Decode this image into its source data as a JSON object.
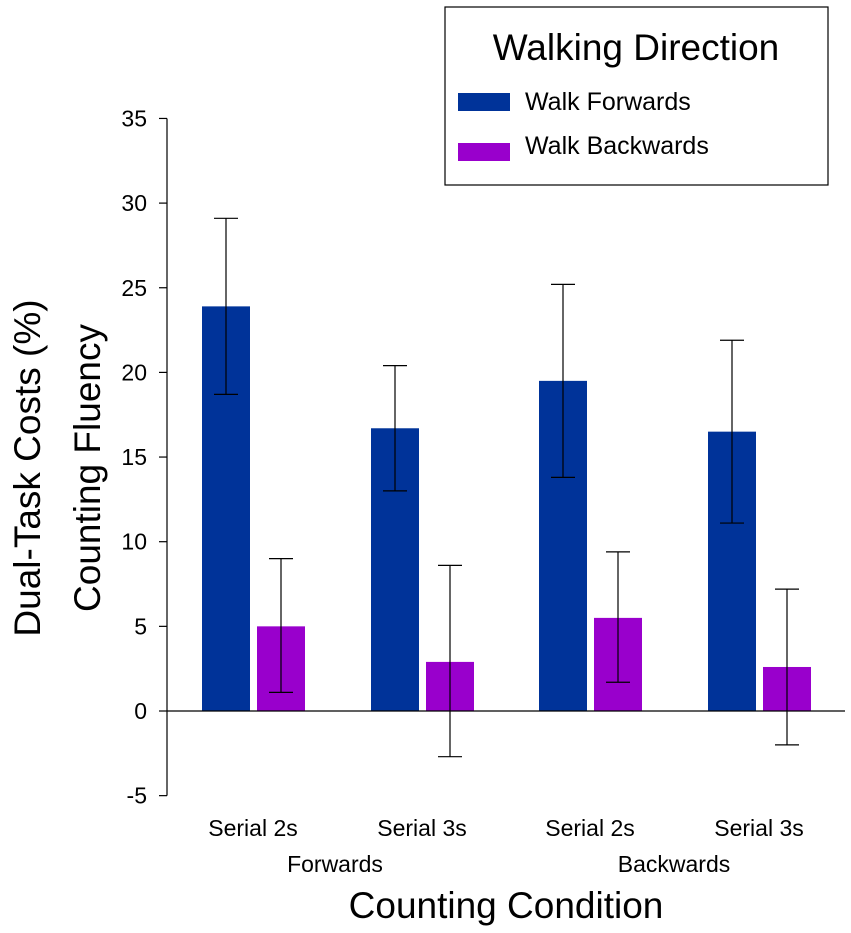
{
  "chart_data": {
    "type": "bar",
    "ylabel_line1": "Dual-Task Costs (%)",
    "ylabel_line2": "Counting Fluency",
    "xlabel": "Counting Condition",
    "ylim": [
      -5,
      35
    ],
    "yticks": [
      35,
      30,
      25,
      20,
      15,
      10,
      5,
      0,
      -5
    ],
    "yticks_labels": [
      "35",
      "30",
      "25",
      "20",
      "15",
      "10",
      "5",
      "0",
      "-5"
    ],
    "categories": [
      "Serial 2s",
      "Serial 3s",
      "Serial 2s",
      "Serial 3s"
    ],
    "groups": [
      "Forwards",
      "Backwards"
    ],
    "legend": {
      "title": "Walking Direction",
      "position": "top-right"
    },
    "series": [
      {
        "name": "Walk Forwards",
        "color": "#003399",
        "values": [
          23.9,
          16.7,
          19.5,
          16.5
        ],
        "err_low": [
          18.7,
          13.0,
          13.8,
          11.1
        ],
        "err_high": [
          29.1,
          20.4,
          25.2,
          21.9
        ]
      },
      {
        "name": "Walk Backwards",
        "color": "#9900CC",
        "values": [
          5.0,
          2.9,
          5.5,
          2.6
        ],
        "err_low": [
          1.1,
          -2.7,
          1.7,
          -2.0
        ],
        "err_high": [
          9.0,
          8.6,
          9.4,
          7.2
        ]
      }
    ]
  }
}
